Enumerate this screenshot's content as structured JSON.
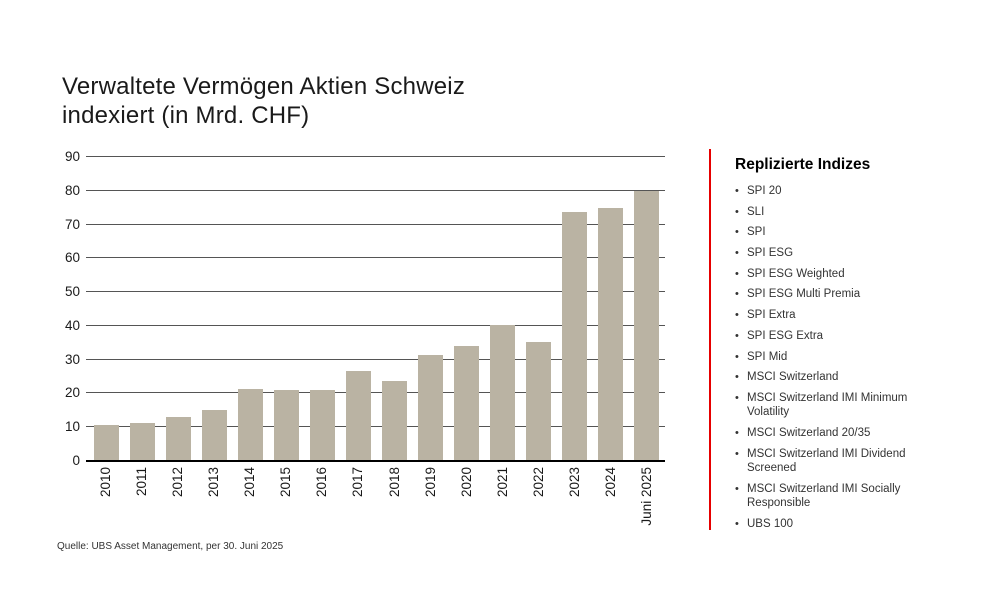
{
  "title": {
    "line1": "Verwaltete Vermögen Aktien Schweiz",
    "line2": "indexiert (in Mrd. CHF)"
  },
  "chart_data": {
    "type": "bar",
    "title": "Verwaltete Vermögen Aktien Schweiz indexiert (in Mrd. CHF)",
    "categories": [
      "2010",
      "2011",
      "2012",
      "2013",
      "2014",
      "2015",
      "2016",
      "2017",
      "2018",
      "2019",
      "2020",
      "2021",
      "2022",
      "2023",
      "2024",
      "Juni 2025"
    ],
    "values": [
      10.8,
      11.3,
      12.9,
      15.2,
      21.3,
      21.0,
      20.9,
      26.7,
      23.8,
      31.4,
      34.1,
      40.2,
      35.2,
      73.7,
      75.0,
      80.0
    ],
    "xlabel": "",
    "ylabel": "",
    "ylim": [
      0,
      90
    ],
    "yticks": [
      0,
      10,
      20,
      30,
      40,
      50,
      60,
      70,
      80,
      90
    ],
    "grid": true,
    "legend_position": "none",
    "bar_color": "#bab3a3",
    "gridline_color": "#555555",
    "axis_line_color": "#000000"
  },
  "sidebar": {
    "heading": "Replizierte Indizes",
    "accent_color": "#e60000",
    "items": [
      "SPI 20",
      "SLI",
      "SPI",
      "SPI ESG",
      "SPI ESG Weighted",
      "SPI ESG Multi Premia",
      "SPI Extra",
      "SPI ESG Extra",
      "SPI Mid",
      "MSCI Switzerland",
      "MSCI Switzerland IMI Minimum Volatility",
      "MSCI Switzerland 20/35",
      "MSCI Switzerland IMI Dividend Screened",
      "MSCI Switzerland IMI Socially Responsible",
      "UBS 100"
    ]
  },
  "footer": {
    "source_text": "Quelle: UBS Asset Management, per 30. Juni 2025"
  }
}
